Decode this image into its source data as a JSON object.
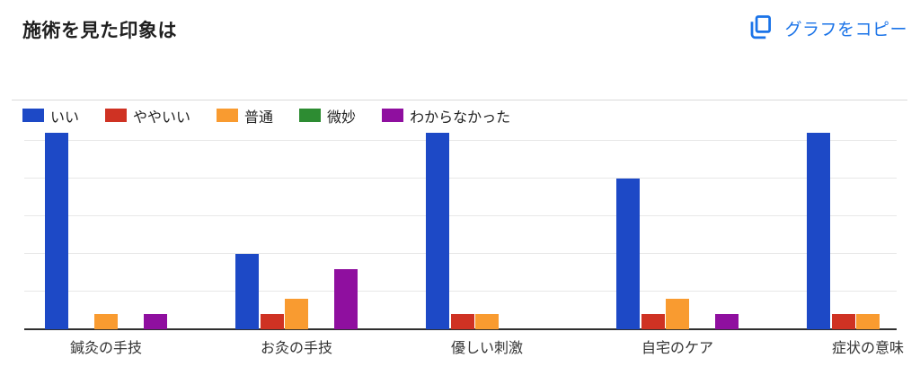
{
  "page": {
    "title": "施術を見た印象は"
  },
  "toolbar": {
    "copy_label": "グラフをコピー",
    "copy_color": "#1a73e8"
  },
  "chart_data": {
    "type": "bar",
    "title": "施術を見た印象は",
    "categories": [
      "鍼灸の手技",
      "お灸の手技",
      "優しい刺激",
      "自宅のケア",
      "症状の意味"
    ],
    "series": [
      {
        "name": "いい",
        "color": "#1d49c6",
        "values": [
          26,
          10,
          26,
          20,
          26
        ]
      },
      {
        "name": "ややいい",
        "color": "#cf3223",
        "values": [
          0,
          2,
          2,
          2,
          2
        ]
      },
      {
        "name": "普通",
        "color": "#f99b30",
        "values": [
          2,
          4,
          2,
          4,
          2
        ]
      },
      {
        "name": "微妙",
        "color": "#2d8c32",
        "values": [
          0,
          0,
          0,
          0,
          0
        ]
      },
      {
        "name": "わからなかった",
        "color": "#8f0f9f",
        "values": [
          2,
          8,
          0,
          2,
          0
        ]
      }
    ],
    "xlabel": "",
    "ylabel": "",
    "ylim": [
      0,
      27
    ],
    "yticks": [
      5,
      10,
      15,
      20,
      25
    ],
    "y_axis_labels_visible": false,
    "grid": true,
    "legend_position": "top"
  }
}
